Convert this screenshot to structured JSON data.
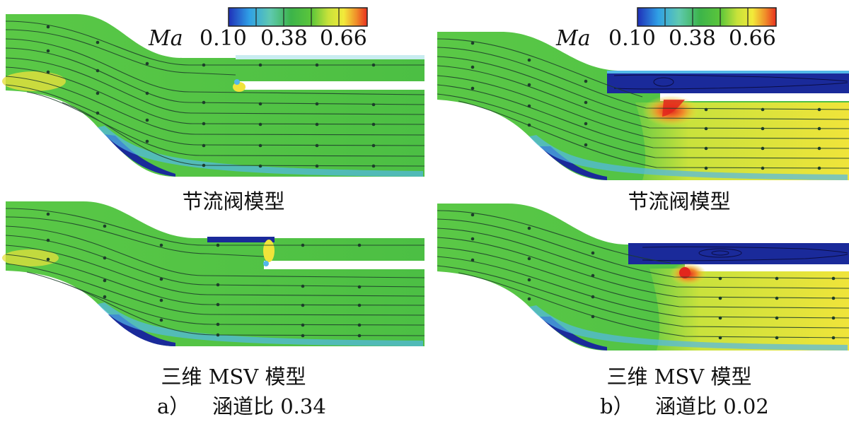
{
  "colorbar": {
    "title": "Ma",
    "ticks": [
      "0.10",
      "0.38",
      "0.66"
    ],
    "colors": [
      "#1f2fb8",
      "#2fa0e6",
      "#56c8a8",
      "#3cb44a",
      "#4cc23a",
      "#8fd43a",
      "#f2f23a",
      "#f08a2a",
      "#e8301e"
    ]
  },
  "panels": {
    "a": {
      "caption_top": "节流阀模型",
      "caption_bottom": "三维 MSV 模型",
      "label": "a）",
      "ratio_text": "涵道比 0.34"
    },
    "b": {
      "caption_top": "节流阀模型",
      "caption_bottom": "三维 MSV 模型",
      "label": "b）",
      "ratio_text": "涵道比 0.02"
    }
  },
  "colors": {
    "green": "#4dbf45",
    "deep_blue": "#1a2a9a",
    "yellow": "#f0e640",
    "red": "#e63a1e",
    "cyan": "#58c8e0",
    "streamline": "#1d3d2a"
  }
}
